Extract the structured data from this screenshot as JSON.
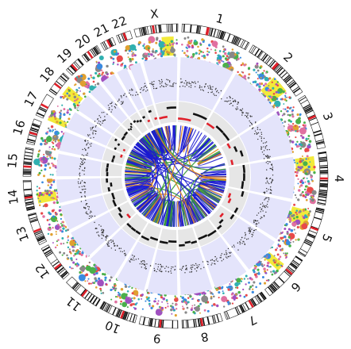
{
  "diagram": {
    "type": "circos",
    "chromosomes": [
      {
        "label": "1",
        "size": 248
      },
      {
        "label": "2",
        "size": 242
      },
      {
        "label": "3",
        "size": 198
      },
      {
        "label": "4",
        "size": 190
      },
      {
        "label": "5",
        "size": 181
      },
      {
        "label": "6",
        "size": 171
      },
      {
        "label": "7",
        "size": 159
      },
      {
        "label": "8",
        "size": 145
      },
      {
        "label": "9",
        "size": 138
      },
      {
        "label": "10",
        "size": 134
      },
      {
        "label": "11",
        "size": 135
      },
      {
        "label": "12",
        "size": 133
      },
      {
        "label": "13",
        "size": 114
      },
      {
        "label": "14",
        "size": 107
      },
      {
        "label": "15",
        "size": 102
      },
      {
        "label": "16",
        "size": 90
      },
      {
        "label": "17",
        "size": 83
      },
      {
        "label": "18",
        "size": 80
      },
      {
        "label": "19",
        "size": 59
      },
      {
        "label": "20",
        "size": 64
      },
      {
        "label": "21",
        "size": 47
      },
      {
        "label": "22",
        "size": 51
      },
      {
        "label": "X",
        "size": 156
      }
    ],
    "colors": {
      "band": "#111111",
      "centromere": "#e0202a",
      "ideogram_bg": "#ffffff",
      "highlight": "#f2ea3a",
      "lavender_track": "#e4e4fb",
      "gray_track": "#e6e6e6",
      "cnv_black": "#111111",
      "cnv_red": "#e0202a",
      "link_blue": "#1a1ad0",
      "link_green": "#3a9a3a",
      "link_orange": "#e08a20",
      "scatter": [
        "#e84a4a",
        "#3a8ae0",
        "#4ab04a",
        "#e0a030",
        "#a050c0",
        "#30b0b0",
        "#e070a0",
        "#888888"
      ]
    }
  }
}
